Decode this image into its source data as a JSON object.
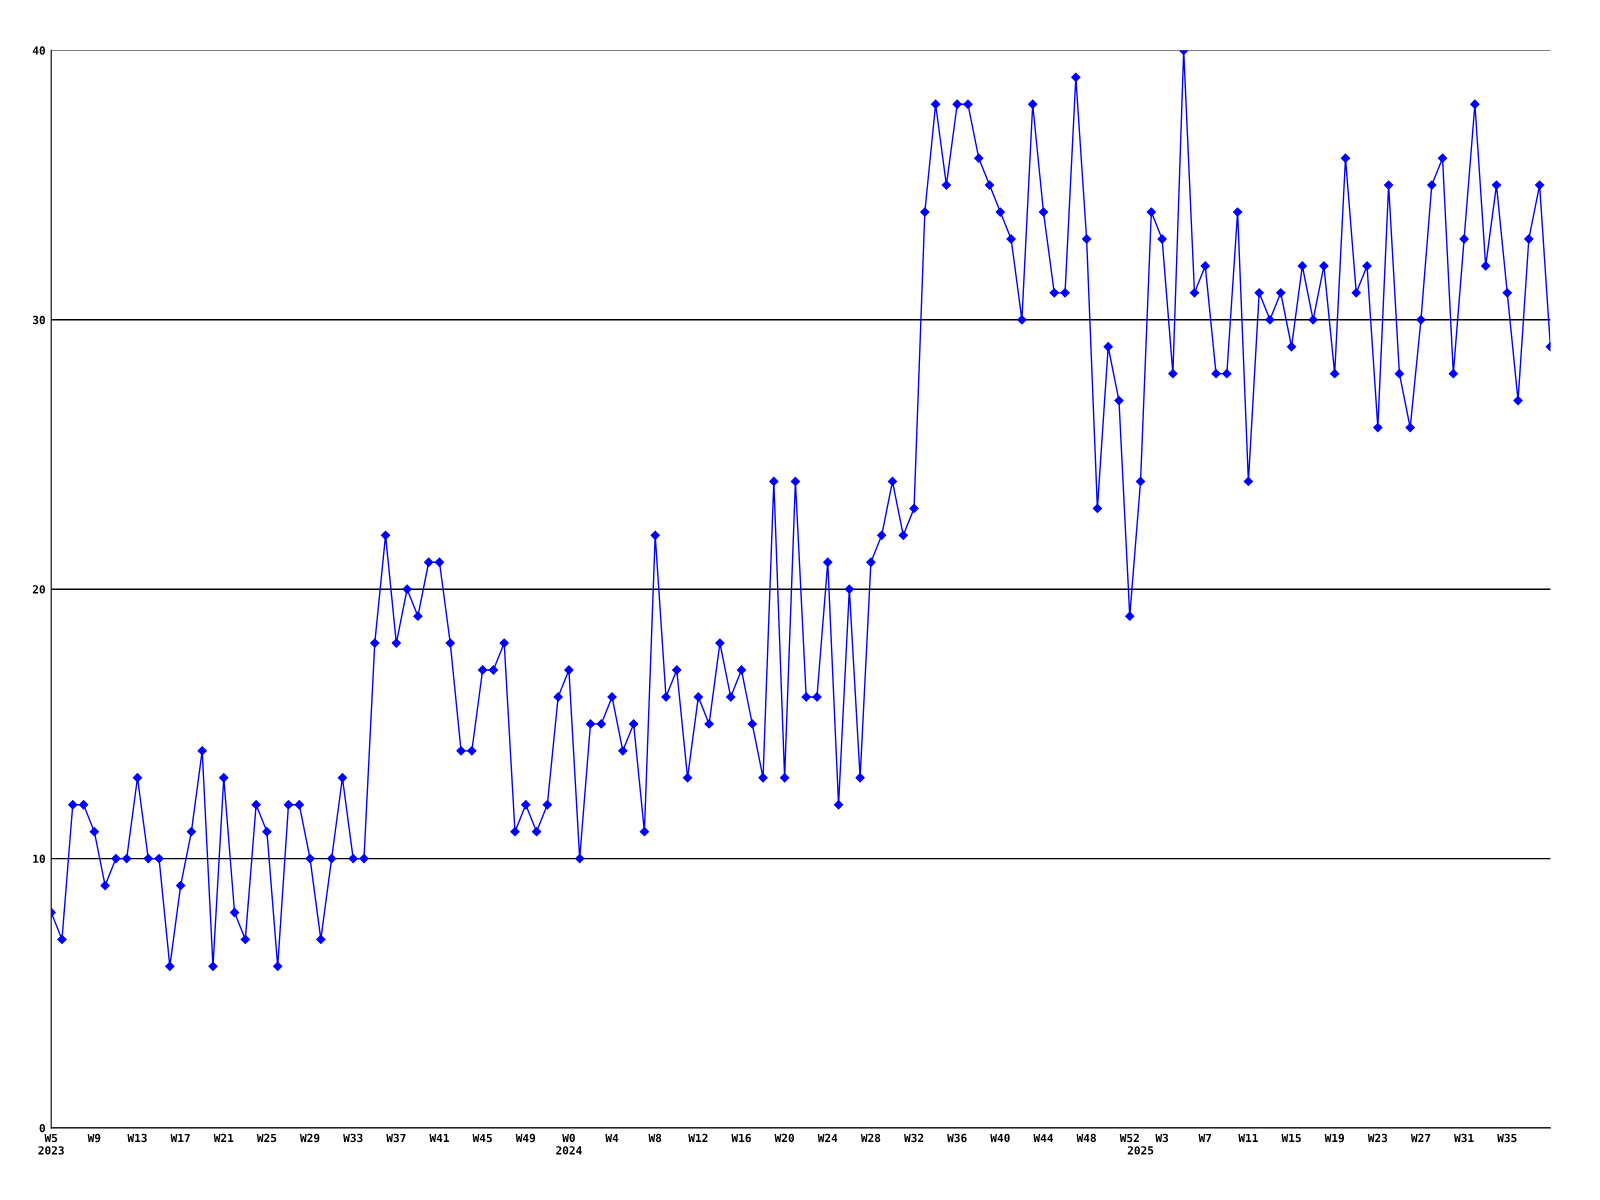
{
  "chart_data": {
    "type": "line",
    "categories": [
      "W5\n2023",
      null,
      null,
      null,
      "W9",
      null,
      null,
      null,
      "W13",
      null,
      null,
      null,
      "W17",
      null,
      null,
      null,
      "W21",
      null,
      null,
      null,
      "W25",
      null,
      null,
      null,
      "W29",
      null,
      null,
      null,
      "W33",
      null,
      null,
      null,
      "W37",
      null,
      null,
      null,
      "W41",
      null,
      null,
      null,
      "W45",
      null,
      null,
      null,
      "W49",
      null,
      null,
      null,
      "W0\n2024",
      null,
      null,
      null,
      "W4",
      null,
      null,
      null,
      "W8",
      null,
      null,
      null,
      "W12",
      null,
      null,
      null,
      "W16",
      null,
      null,
      null,
      "W20",
      null,
      null,
      null,
      "W24",
      null,
      null,
      null,
      "W28",
      null,
      null,
      null,
      "W32",
      null,
      null,
      null,
      "W36",
      null,
      null,
      null,
      "W40",
      null,
      null,
      null,
      "W44",
      null,
      null,
      null,
      "W48",
      null,
      null,
      null,
      "W52",
      "\n2025",
      null,
      "W3",
      null,
      null,
      null,
      "W7",
      null,
      null,
      null,
      "W11",
      null,
      null,
      null,
      "W15",
      null,
      null,
      null,
      "W19",
      null,
      null,
      null,
      "W23",
      null,
      null,
      null,
      "W27",
      null,
      null,
      null,
      "W31",
      null,
      null,
      null,
      "W35",
      null,
      null,
      null,
      null
    ],
    "series": [
      {
        "color": "#0000ff",
        "values": [
          8,
          7,
          12,
          12,
          11,
          9,
          10,
          10,
          13,
          10,
          10,
          6,
          9,
          11,
          14,
          6,
          13,
          8,
          7,
          12,
          11,
          6,
          12,
          12,
          10,
          7,
          10,
          13,
          10,
          10,
          18,
          22,
          18,
          20,
          19,
          21,
          21,
          18,
          14,
          14,
          17,
          17,
          18,
          11,
          12,
          11,
          12,
          16,
          17,
          10,
          15,
          15,
          16,
          14,
          15,
          11,
          22,
          16,
          17,
          13,
          16,
          15,
          18,
          16,
          17,
          15,
          13,
          24,
          13,
          24,
          16,
          16,
          21,
          12,
          20,
          13,
          21,
          22,
          24,
          22,
          23,
          34,
          38,
          35,
          38,
          38,
          36,
          35,
          34,
          33,
          30,
          38,
          34,
          31,
          31,
          39,
          33,
          23,
          29,
          27,
          19,
          24,
          34,
          33,
          28,
          40,
          31,
          32,
          28,
          28,
          34,
          24,
          31,
          30,
          31,
          29,
          32,
          30,
          32,
          28,
          36,
          31,
          32,
          26,
          35,
          28,
          26,
          30,
          35,
          36,
          28,
          33,
          38,
          32,
          35,
          31,
          27,
          33,
          35,
          29
        ]
      }
    ],
    "ylim": [
      0,
      40
    ],
    "yticks": [
      0,
      10,
      20,
      30,
      40
    ],
    "grid": "y",
    "marker": "diamond",
    "line_style": "solid"
  }
}
